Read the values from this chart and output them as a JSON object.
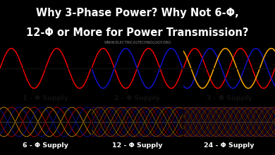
{
  "title_line1": "Why 3-Phase Power? Why Not 6-Φ,",
  "title_line2": "12-Φ or More for Power Transmission?",
  "watermark": "WWW.ELECTRICALTECHNOLOGY.ORG",
  "bg_color": "#000000",
  "title_color": "#ffffff",
  "watermark_color": "#888888",
  "labels": [
    "1 - Φ Supply",
    "2 - Φ Supply",
    "3 - Φ Supply",
    "6 - Φ Supply",
    "12 - Φ Supply",
    "24 - Φ Supply"
  ],
  "phases": [
    1,
    2,
    3,
    6,
    12,
    24
  ],
  "colors_cycle": [
    "#ee0000",
    "#1111cc",
    "#ffaa00"
  ],
  "panel_bg_top": "#e8e8e8",
  "panel_bg_bottom": "#1a1000",
  "label_color_top": "#111111",
  "label_color_bottom": "#ffffff",
  "title_fontsize": 10.5,
  "label_fontsize": 6.8,
  "watermark_fontsize": 3.8
}
